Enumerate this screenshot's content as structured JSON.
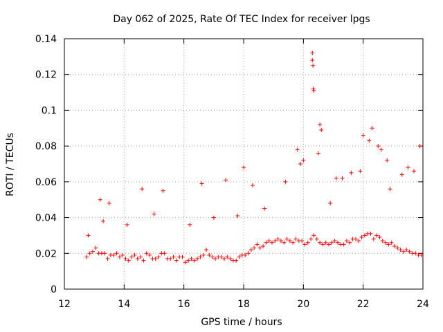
{
  "chart_data": {
    "type": "scatter",
    "title": "Day 062 of 2025, Rate Of TEC Index for receiver lpgs",
    "xlabel": "GPS time / hours",
    "ylabel": "ROTI / TECUs",
    "xlim": [
      12,
      24
    ],
    "ylim": [
      0,
      0.14
    ],
    "xticks": [
      12,
      14,
      16,
      18,
      20,
      22,
      24
    ],
    "xtick_labels": [
      "12",
      "14",
      "16",
      "18",
      "20",
      "22",
      "24"
    ],
    "yticks": [
      0,
      0.02,
      0.04,
      0.06,
      0.08,
      0.1,
      0.12,
      0.14
    ],
    "ytick_labels": [
      "0",
      "0.02",
      "0.04",
      "0.06",
      "0.08",
      "0.1",
      "0.12",
      "0.14"
    ],
    "grid": true,
    "marker": "+",
    "marker_color": "#ff0000",
    "series": [
      {
        "name": "ROTI",
        "x": [
          12.75,
          12.85,
          12.95,
          13.05,
          13.15,
          13.25,
          13.35,
          13.45,
          13.55,
          13.65,
          13.75,
          13.85,
          13.95,
          14.05,
          14.15,
          14.25,
          14.35,
          14.45,
          14.55,
          14.65,
          14.75,
          14.85,
          14.95,
          15.05,
          15.15,
          15.25,
          15.35,
          15.45,
          15.55,
          15.65,
          15.75,
          15.85,
          15.95,
          16.05,
          16.15,
          16.25,
          16.35,
          16.45,
          16.55,
          16.65,
          16.75,
          16.85,
          16.95,
          17.05,
          17.15,
          17.25,
          17.35,
          17.45,
          17.55,
          17.65,
          17.75,
          17.85,
          17.95,
          18.05,
          18.15,
          18.25,
          18.35,
          18.45,
          18.55,
          18.65,
          18.75,
          18.85,
          18.95,
          19.05,
          19.15,
          19.25,
          19.35,
          19.45,
          19.55,
          19.65,
          19.75,
          19.85,
          19.95,
          20.05,
          20.15,
          20.25,
          20.35,
          20.45,
          20.55,
          20.65,
          20.75,
          20.85,
          20.95,
          21.05,
          21.15,
          21.25,
          21.35,
          21.45,
          21.55,
          21.65,
          21.75,
          21.85,
          21.95,
          22.05,
          22.15,
          22.25,
          22.35,
          22.45,
          22.55,
          22.65,
          22.75,
          22.85,
          22.95,
          23.05,
          23.15,
          23.25,
          23.35,
          23.45,
          23.55,
          23.65,
          23.75,
          23.85,
          23.95,
          13.2,
          13.5,
          14.6,
          15.3,
          16.6,
          17.4,
          18.0,
          18.3,
          19.8,
          19.9,
          20.0,
          20.3,
          20.3,
          20.32,
          20.35,
          20.33,
          20.55,
          20.6,
          20.5,
          21.1,
          21.6,
          21.9,
          22.0,
          22.2,
          22.3,
          22.5,
          22.6,
          22.8,
          23.5,
          23.7,
          23.9,
          12.8,
          13.3,
          14.1,
          15.0,
          16.2,
          17.0,
          17.8,
          18.7,
          19.4,
          20.9,
          21.3,
          22.9,
          23.3
        ],
        "y": [
          0.018,
          0.02,
          0.021,
          0.023,
          0.02,
          0.02,
          0.02,
          0.017,
          0.019,
          0.019,
          0.02,
          0.018,
          0.019,
          0.017,
          0.016,
          0.018,
          0.019,
          0.017,
          0.018,
          0.016,
          0.02,
          0.019,
          0.017,
          0.017,
          0.018,
          0.02,
          0.02,
          0.017,
          0.017,
          0.018,
          0.016,
          0.018,
          0.018,
          0.015,
          0.016,
          0.017,
          0.016,
          0.017,
          0.018,
          0.019,
          0.022,
          0.019,
          0.018,
          0.017,
          0.018,
          0.018,
          0.017,
          0.018,
          0.017,
          0.016,
          0.016,
          0.018,
          0.019,
          0.019,
          0.02,
          0.022,
          0.023,
          0.025,
          0.023,
          0.024,
          0.026,
          0.027,
          0.026,
          0.027,
          0.028,
          0.027,
          0.026,
          0.028,
          0.027,
          0.026,
          0.028,
          0.027,
          0.027,
          0.025,
          0.026,
          0.028,
          0.03,
          0.028,
          0.026,
          0.025,
          0.026,
          0.025,
          0.026,
          0.027,
          0.026,
          0.025,
          0.025,
          0.027,
          0.026,
          0.028,
          0.028,
          0.027,
          0.029,
          0.03,
          0.031,
          0.031,
          0.028,
          0.03,
          0.029,
          0.027,
          0.026,
          0.025,
          0.026,
          0.024,
          0.023,
          0.022,
          0.021,
          0.022,
          0.021,
          0.02,
          0.02,
          0.019,
          0.019,
          0.05,
          0.048,
          0.056,
          0.055,
          0.059,
          0.061,
          0.068,
          0.058,
          0.078,
          0.07,
          0.072,
          0.132,
          0.128,
          0.125,
          0.111,
          0.112,
          0.092,
          0.089,
          0.076,
          0.062,
          0.065,
          0.066,
          0.086,
          0.083,
          0.09,
          0.08,
          0.078,
          0.072,
          0.068,
          0.066,
          0.08,
          0.03,
          0.038,
          0.036,
          0.042,
          0.036,
          0.04,
          0.041,
          0.045,
          0.06,
          0.048,
          0.062,
          0.056,
          0.064
        ]
      }
    ]
  }
}
